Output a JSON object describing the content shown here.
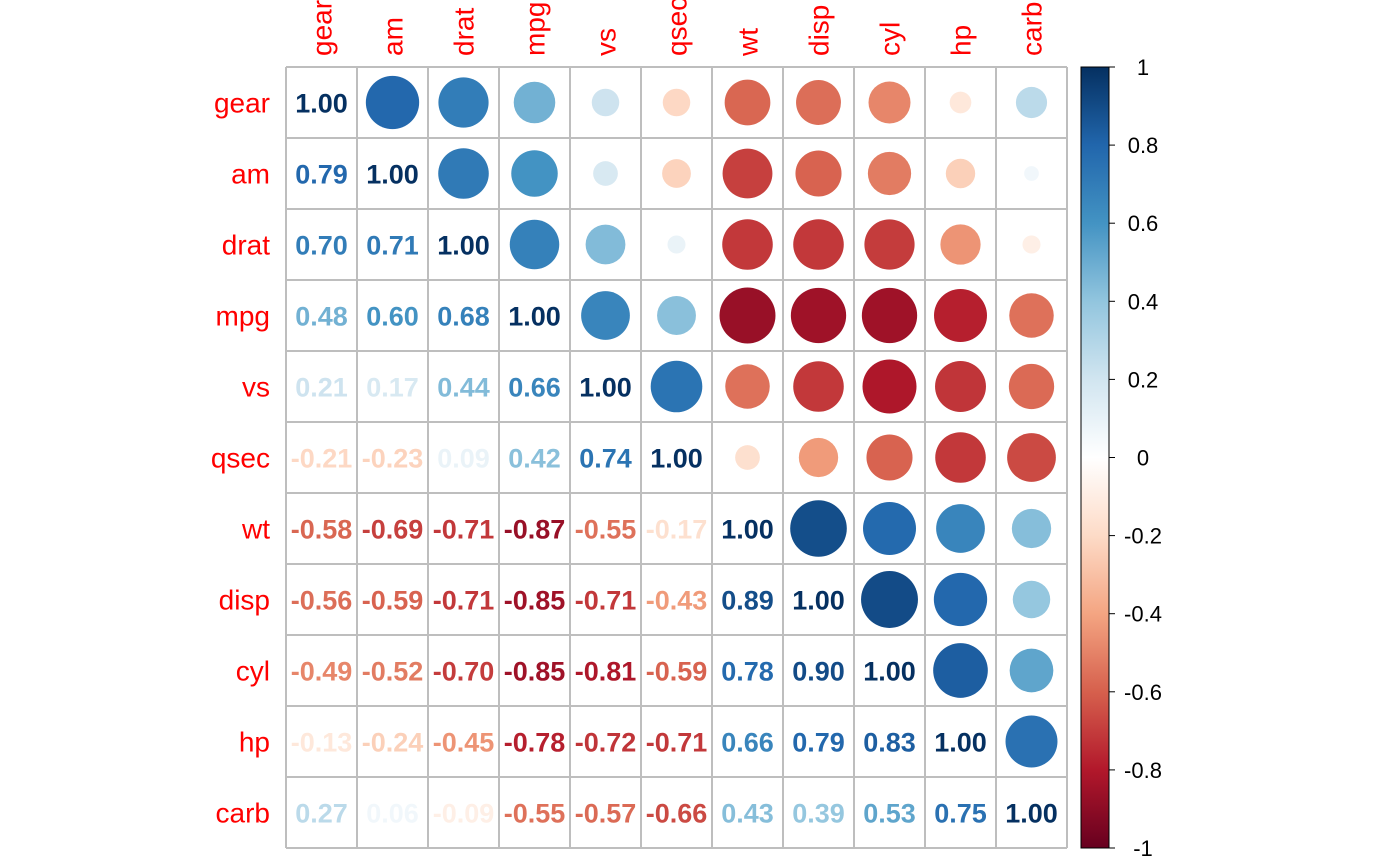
{
  "chart_data": {
    "type": "heatmap",
    "style": "mixed: upper triangle circles, lower triangle numbers, diagonal numbers",
    "variables": [
      "gear",
      "am",
      "drat",
      "mpg",
      "vs",
      "qsec",
      "wt",
      "disp",
      "cyl",
      "hp",
      "carb"
    ],
    "matrix": [
      [
        1.0,
        0.79,
        0.7,
        0.48,
        0.21,
        -0.21,
        -0.58,
        -0.56,
        -0.49,
        -0.13,
        0.27
      ],
      [
        0.79,
        1.0,
        0.71,
        0.6,
        0.17,
        -0.23,
        -0.69,
        -0.59,
        -0.52,
        -0.24,
        0.06
      ],
      [
        0.7,
        0.71,
        1.0,
        0.68,
        0.44,
        0.09,
        -0.71,
        -0.71,
        -0.7,
        -0.45,
        -0.09
      ],
      [
        0.48,
        0.6,
        0.68,
        1.0,
        0.66,
        0.42,
        -0.87,
        -0.85,
        -0.85,
        -0.78,
        -0.55
      ],
      [
        0.21,
        0.17,
        0.44,
        0.66,
        1.0,
        0.74,
        -0.55,
        -0.71,
        -0.81,
        -0.72,
        -0.57
      ],
      [
        -0.21,
        -0.23,
        0.09,
        0.42,
        0.74,
        1.0,
        -0.17,
        -0.43,
        -0.59,
        -0.71,
        -0.66
      ],
      [
        -0.58,
        -0.69,
        -0.71,
        -0.87,
        -0.55,
        -0.17,
        1.0,
        0.89,
        0.78,
        0.66,
        0.43
      ],
      [
        -0.56,
        -0.59,
        -0.71,
        -0.85,
        -0.71,
        -0.43,
        0.89,
        1.0,
        0.9,
        0.79,
        0.39
      ],
      [
        -0.49,
        -0.52,
        -0.7,
        -0.85,
        -0.81,
        -0.59,
        0.78,
        0.9,
        1.0,
        0.83,
        0.53
      ],
      [
        -0.13,
        -0.24,
        -0.45,
        -0.78,
        -0.72,
        -0.71,
        0.66,
        0.79,
        0.83,
        1.0,
        0.75
      ],
      [
        0.27,
        0.06,
        -0.09,
        -0.55,
        -0.57,
        -0.66,
        0.43,
        0.39,
        0.53,
        0.75,
        1.0
      ]
    ],
    "colorbar": {
      "range": [
        -1,
        1
      ],
      "ticks": [
        "1",
        "0.8",
        "0.6",
        "0.4",
        "0.2",
        "0",
        "-0.2",
        "-0.4",
        "-0.6",
        "-0.8",
        "-1"
      ],
      "placement": "right"
    },
    "colors": {
      "palette": [
        "#67001F",
        "#B2182B",
        "#D6604D",
        "#F4A582",
        "#FDDBC7",
        "#FFFFFF",
        "#D1E5F0",
        "#92C5DE",
        "#4393C3",
        "#2166AC",
        "#053061"
      ],
      "label_color": "#FF0000",
      "grid_color": "#BEBEBE"
    },
    "title": "",
    "xlabel": "",
    "ylabel": ""
  }
}
